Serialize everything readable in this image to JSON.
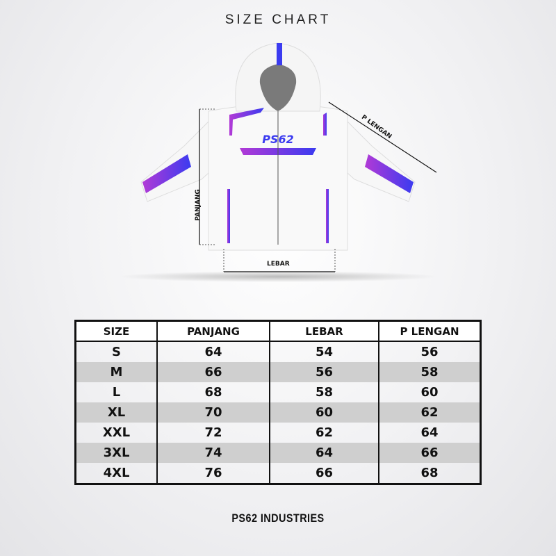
{
  "title": "SIZE CHART",
  "diagram": {
    "brand_logo": "PS62",
    "labels": {
      "panjang": "PANJANG",
      "lebar": "LEBAR",
      "p_lengan": "P LENGAN"
    },
    "colors": {
      "purple": "#a23ad8",
      "blue": "#3b3bf0"
    }
  },
  "table": {
    "headers": [
      "SIZE",
      "PANJANG",
      "LEBAR",
      "P LENGAN"
    ],
    "rows": [
      [
        "S",
        "64",
        "54",
        "56"
      ],
      [
        "M",
        "66",
        "56",
        "58"
      ],
      [
        "L",
        "68",
        "58",
        "60"
      ],
      [
        "XL",
        "70",
        "60",
        "62"
      ],
      [
        "XXL",
        "72",
        "62",
        "64"
      ],
      [
        "3XL",
        "74",
        "64",
        "66"
      ],
      [
        "4XL",
        "76",
        "66",
        "68"
      ]
    ]
  },
  "footer": "PS62 INDUSTRIES"
}
